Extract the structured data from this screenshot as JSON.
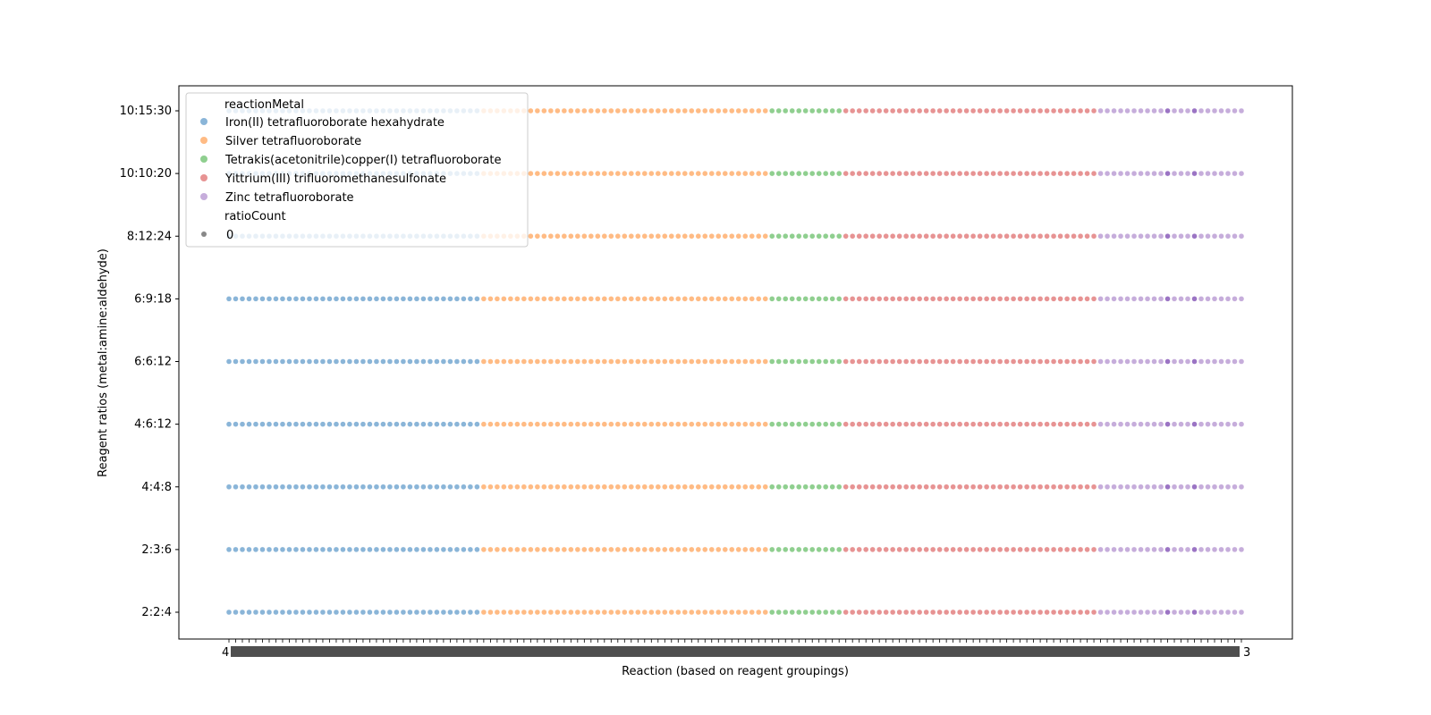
{
  "chart_data": {
    "type": "scatter",
    "title": "",
    "xlabel": "Reaction (based on reagent groupings)",
    "ylabel": "Reagent ratios (metal:amine:aldehyde)",
    "y_categories": [
      "2:2:4",
      "2:3:6",
      "4:4:8",
      "4:6:12",
      "6:6:12",
      "6:9:18",
      "8:12:24",
      "10:10:20",
      "10:15:30"
    ],
    "x_tick_labels_visible": {
      "first": "4",
      "last": "3",
      "note_text": ""
    },
    "point_count_per_row": 152,
    "series": [
      {
        "name": "Iron(II) tetrafluoroborate hexahydrate",
        "x_range": [
          0,
          37
        ],
        "color": "#8ab5d8"
      },
      {
        "name": "Silver tetrafluoroborate",
        "x_range": [
          38,
          80
        ],
        "color": "#ffbb84"
      },
      {
        "name": "Tetrakis(acetonitrile)copper(I) tetrafluoroborate",
        "x_range": [
          81,
          91
        ],
        "color": "#8fcf8f"
      },
      {
        "name": "Yittrium(III) trifluoromethanesulfonate",
        "x_range": [
          92,
          129
        ],
        "color": "#e79393"
      },
      {
        "name": "Zinc tetrafluoroborate",
        "x_range": [
          130,
          151
        ],
        "color": "#c6addb"
      }
    ],
    "highlight_points": [
      140,
      144
    ],
    "highlight_color": "#9b74c4",
    "legend": {
      "placement": "upper-left",
      "hue_title": "reactionMetal",
      "size_title": "ratioCount",
      "size_entries": [
        "0"
      ],
      "size_marker_color": "#888888"
    },
    "grid": false
  }
}
